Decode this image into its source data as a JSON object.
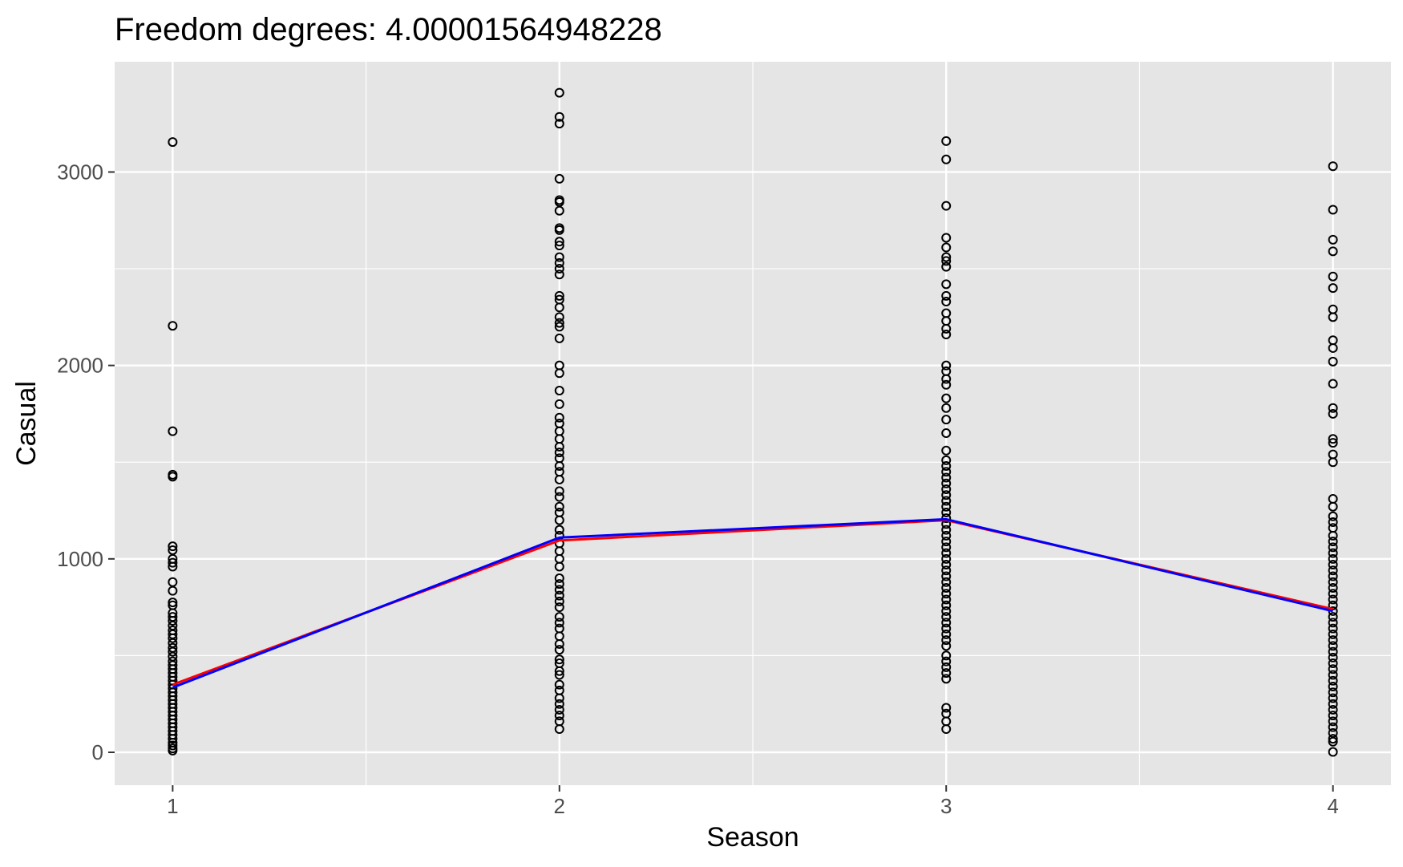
{
  "chart_data": {
    "type": "scatter",
    "title": "Freedom degrees: 4.00001564948228",
    "xlabel": "Season",
    "ylabel": "Casual",
    "x_ticks": [
      1,
      2,
      3,
      4
    ],
    "x_tick_labels": [
      "1",
      "2",
      "3",
      "4"
    ],
    "y_ticks": [
      0,
      1000,
      2000,
      3000
    ],
    "y_tick_labels": [
      "0",
      "1000",
      "2000",
      "3000"
    ],
    "xlim": [
      0.85,
      4.15
    ],
    "ylim": [
      -170,
      3570
    ],
    "grid": true,
    "legend": "none",
    "colors": {
      "panel": "#e5e5e5",
      "grid": "#ffffff",
      "points": "#000000",
      "fit_red": "#ff0000",
      "fit_blue": "#0000ff"
    },
    "points": [
      {
        "season": 1,
        "casual": [
          3155,
          2205,
          1660,
          1435,
          1425,
          1065,
          1045,
          1000,
          980,
          960,
          880,
          835,
          775,
          760,
          720,
          700,
          680,
          655,
          630,
          610,
          590,
          565,
          540,
          520,
          495,
          470,
          450,
          430,
          410,
          390,
          370,
          350,
          330,
          310,
          290,
          270,
          250,
          230,
          210,
          190,
          170,
          150,
          130,
          110,
          90,
          70,
          50,
          35,
          20,
          9
        ]
      },
      {
        "season": 2,
        "casual": [
          3410,
          3285,
          3250,
          2965,
          2855,
          2845,
          2800,
          2710,
          2700,
          2640,
          2620,
          2560,
          2530,
          2500,
          2470,
          2360,
          2340,
          2300,
          2250,
          2220,
          2200,
          2140,
          2000,
          1960,
          1870,
          1800,
          1730,
          1700,
          1660,
          1620,
          1580,
          1550,
          1520,
          1480,
          1450,
          1410,
          1350,
          1320,
          1270,
          1240,
          1200,
          1150,
          1120,
          1080,
          1040,
          1000,
          960,
          900,
          870,
          840,
          810,
          780,
          750,
          700,
          670,
          640,
          600,
          560,
          530,
          480,
          460,
          420,
          400,
          350,
          320,
          280,
          250,
          220,
          190,
          160,
          120
        ]
      },
      {
        "season": 3,
        "casual": [
          3160,
          3065,
          2825,
          2660,
          2610,
          2560,
          2540,
          2510,
          2420,
          2360,
          2330,
          2270,
          2230,
          2190,
          2160,
          2000,
          1970,
          1930,
          1900,
          1830,
          1780,
          1720,
          1650,
          1560,
          1510,
          1480,
          1450,
          1420,
          1390,
          1360,
          1330,
          1300,
          1270,
          1240,
          1210,
          1180,
          1150,
          1120,
          1090,
          1060,
          1030,
          1000,
          970,
          940,
          910,
          880,
          850,
          820,
          790,
          760,
          730,
          700,
          670,
          640,
          610,
          580,
          550,
          500,
          470,
          440,
          410,
          380,
          230,
          200,
          160,
          120
        ]
      },
      {
        "season": 4,
        "casual": [
          3030,
          2805,
          2650,
          2590,
          2460,
          2400,
          2290,
          2250,
          2130,
          2090,
          2020,
          1905,
          1780,
          1750,
          1620,
          1600,
          1540,
          1500,
          1310,
          1270,
          1220,
          1190,
          1160,
          1120,
          1090,
          1060,
          1030,
          1000,
          970,
          940,
          910,
          880,
          850,
          820,
          790,
          760,
          730,
          700,
          670,
          640,
          610,
          580,
          550,
          520,
          490,
          460,
          430,
          400,
          370,
          340,
          310,
          280,
          250,
          220,
          190,
          160,
          130,
          100,
          70,
          55,
          2
        ]
      }
    ],
    "series": [
      {
        "x": [
          1,
          2,
          3,
          4
        ],
        "y": [
          350,
          1095,
          1200,
          740
        ]
      },
      {
        "x": [
          1,
          2,
          3,
          4
        ],
        "y": [
          335,
          1110,
          1205,
          730
        ]
      }
    ]
  }
}
